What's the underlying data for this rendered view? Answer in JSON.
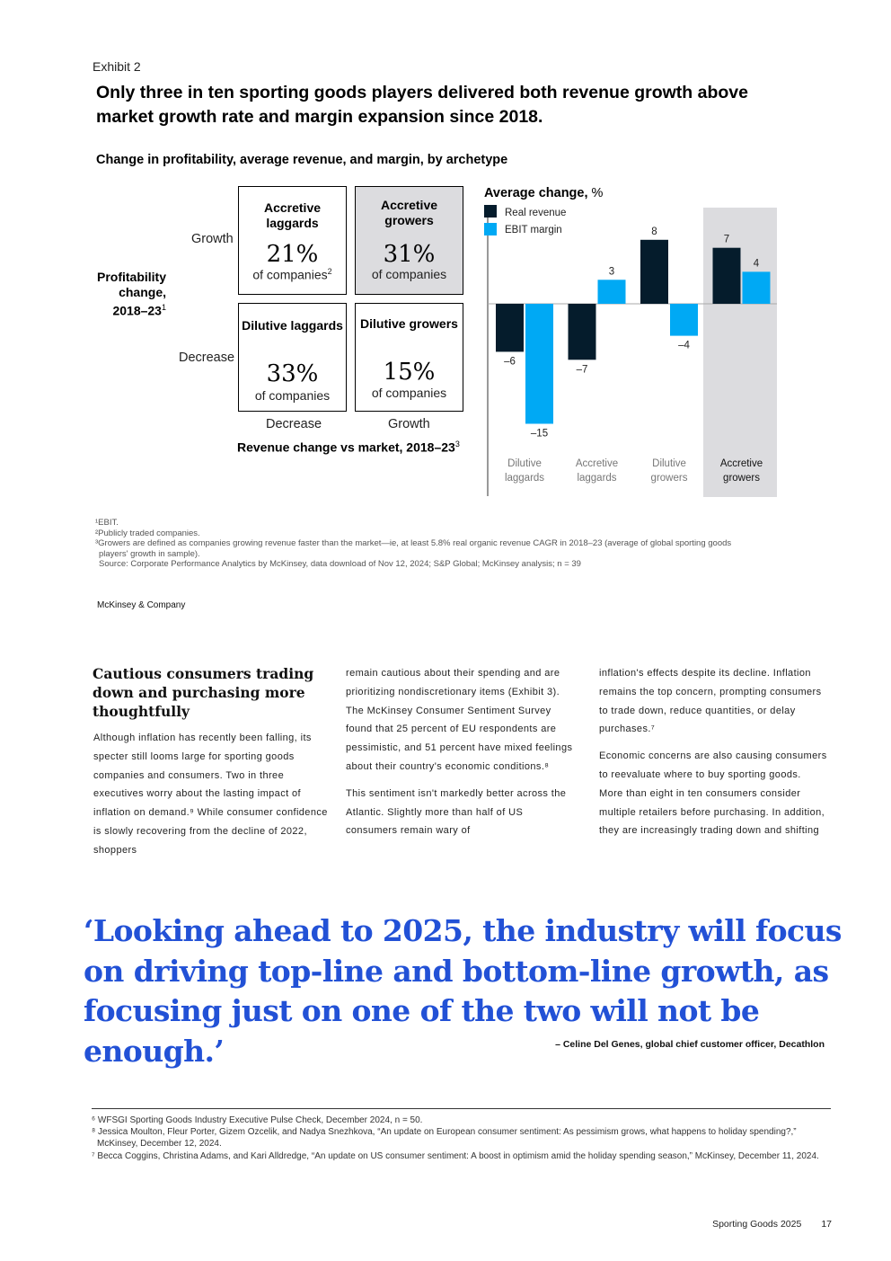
{
  "exhibit": {
    "label": "Exhibit 2",
    "title": "Only three in ten sporting goods players delivered both revenue growth above market growth rate and margin expansion since 2018.",
    "subtitle": "Change in profitability, average revenue, and margin, by archetype"
  },
  "matrix": {
    "y_axis_title": "Profitability change, 2018–23",
    "y_axis_title_sup": "1",
    "x_axis_title": "Revenue change vs market, 2018–23",
    "x_axis_title_sup": "3",
    "row_labels": [
      "Growth",
      "Decrease"
    ],
    "col_labels": [
      "Decrease",
      "Growth"
    ],
    "cells": [
      {
        "name": "Accretive laggards",
        "pct": "21%",
        "sub": "of companies",
        "sup": "2"
      },
      {
        "name": "Accretive growers",
        "pct": "31%",
        "sub": "of companies",
        "sup": ""
      },
      {
        "name": "Dilutive laggards",
        "pct": "33%",
        "sub": "of companies",
        "sup": ""
      },
      {
        "name": "Dilutive growers",
        "pct": "15%",
        "sub": "of companies",
        "sup": ""
      }
    ]
  },
  "chart_data": {
    "type": "bar",
    "title": "Average change, %",
    "title_bold": "Average change,",
    "title_unit": "%",
    "categories": [
      "Dilutive laggards",
      "Accretive laggards",
      "Dilutive growers",
      "Accretive growers"
    ],
    "highlighted_category": "Accretive growers",
    "series": [
      {
        "name": "Real revenue",
        "color": "#051c2c",
        "values": [
          -6,
          -7,
          8,
          7
        ]
      },
      {
        "name": "EBIT margin",
        "color": "#00a9f4",
        "values": [
          -15,
          3,
          -4,
          4
        ]
      }
    ],
    "value_labels": [
      [
        "–6",
        "–7",
        "8",
        "7"
      ],
      [
        "–15",
        "3",
        "–4",
        "4"
      ]
    ],
    "ylim": [
      -15,
      8
    ],
    "legend_position": "top-left"
  },
  "footnotes": [
    "¹EBIT.",
    "²Publicly traded companies.",
    "³Growers are defined as companies growing revenue faster than the market—ie, at least 5.8% real organic revenue CAGR in 2018–23 (average of global sporting goods players' growth in sample).",
    "Source: Corporate Performance Analytics by McKinsey, data download of Nov 12, 2024; S&P Global; McKinsey analysis; n = 39"
  ],
  "brand": "McKinsey & Company",
  "article": {
    "heading": "Cautious consumers trading down and purchasing more thoughtfully",
    "col1": [
      "Although inflation has recently been falling, its specter still looms large for sporting goods companies and consumers. Two in three executives worry about the lasting impact of inflation on demand.⁹ While consumer confidence is slowly recovering from the decline of 2022, shoppers"
    ],
    "col2": [
      "remain cautious about their spending and are prioritizing nondiscretionary items (Exhibit 3). The McKinsey Consumer Sentiment Survey found that 25 percent of EU respondents are pessimistic, and 51 percent have mixed feelings about their country's economic conditions.⁸",
      "This sentiment isn't markedly better across the Atlantic. Slightly more than half of US consumers remain wary of"
    ],
    "col3": [
      "inflation's effects despite its decline. Inflation remains the top concern, prompting consumers to trade down, reduce quantities, or delay purchases.⁷",
      "Economic concerns are also causing consumers to reevaluate where to buy sporting goods. More than eight in ten consumers consider multiple retailers before purchasing. In addition, they are increasingly trading down and shifting"
    ]
  },
  "quote": {
    "text": "‘Looking ahead to 2025, the industry will focus on driving top-line and bottom-line growth, as focusing just on one of the two will not be enough.’",
    "attribution": "– Celine Del Genes, global chief customer officer, Decathlon"
  },
  "endnotes": [
    "⁶ WFSGI Sporting Goods Industry Executive Pulse Check, December 2024, n = 50.",
    "⁸ Jessica Moulton, Fleur Porter, Gizem Ozcelik, and Nadya Snezhkova, “An update on European consumer sentiment: As pessimism grows, what happens to holiday spending?,” McKinsey, December 12, 2024.",
    "⁷ Becca Coggins, Christina Adams, and Kari Alldredge, “An update on US consumer sentiment: A boost in optimism amid the holiday spending season,” McKinsey, December 11, 2024."
  ],
  "footer": {
    "publication": "Sporting Goods 2025",
    "page": "17"
  }
}
